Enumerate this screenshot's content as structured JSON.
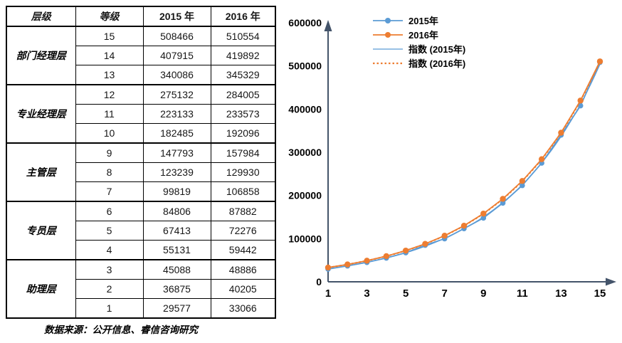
{
  "table": {
    "headers": [
      "层级",
      "等级",
      "2015 年",
      "2016 年"
    ],
    "groups": [
      {
        "level": "部门经理层",
        "rows": [
          [
            "15",
            "508466",
            "510554"
          ],
          [
            "14",
            "407915",
            "419892"
          ],
          [
            "13",
            "340086",
            "345329"
          ]
        ]
      },
      {
        "level": "专业经理层",
        "rows": [
          [
            "12",
            "275132",
            "284005"
          ],
          [
            "11",
            "223133",
            "233573"
          ],
          [
            "10",
            "182485",
            "192096"
          ]
        ]
      },
      {
        "level": "主管层",
        "rows": [
          [
            "9",
            "147793",
            "157984"
          ],
          [
            "8",
            "123239",
            "129930"
          ],
          [
            "7",
            "99819",
            "106858"
          ]
        ]
      },
      {
        "level": "专员层",
        "rows": [
          [
            "6",
            "84806",
            "87882"
          ],
          [
            "5",
            "67413",
            "72276"
          ],
          [
            "4",
            "55131",
            "59442"
          ]
        ]
      },
      {
        "level": "助理层",
        "rows": [
          [
            "3",
            "45088",
            "48886"
          ],
          [
            "2",
            "36875",
            "40205"
          ],
          [
            "1",
            "29577",
            "33066"
          ]
        ]
      }
    ]
  },
  "footnote": "数据来源：公开信息、睿信咨询研究",
  "chart_data": {
    "type": "line",
    "x": [
      1,
      2,
      3,
      4,
      5,
      6,
      7,
      8,
      9,
      10,
      11,
      12,
      13,
      14,
      15
    ],
    "series": [
      {
        "name": "2015年",
        "color": "#5B9BD5",
        "marker": true,
        "style": "solid",
        "values": [
          29577,
          36875,
          45088,
          55131,
          67413,
          84806,
          99819,
          123239,
          147793,
          182485,
          223133,
          275132,
          340086,
          407915,
          508466
        ]
      },
      {
        "name": "2016年",
        "color": "#ED7D31",
        "marker": true,
        "style": "solid",
        "values": [
          33066,
          40205,
          48886,
          59442,
          72276,
          87882,
          106858,
          129930,
          157984,
          192096,
          233573,
          284005,
          345329,
          419892,
          510554
        ]
      },
      {
        "name": "指数 (2015年)",
        "color": "#5B9BD5",
        "marker": false,
        "style": "solid",
        "trend_of": 0
      },
      {
        "name": "指数 (2016年)",
        "color": "#ED7D31",
        "marker": false,
        "style": "dotted",
        "trend_of": 1
      }
    ],
    "title": "",
    "xlabel": "",
    "ylabel": "",
    "ylim": [
      0,
      600000
    ],
    "ytick_step": 100000,
    "ytick_labels": [
      "0",
      "100000",
      "200000",
      "300000",
      "400000",
      "500000",
      "600000"
    ],
    "xtick_labels": [
      "1",
      "3",
      "5",
      "7",
      "9",
      "11",
      "13",
      "15"
    ],
    "legend_position": "top-left",
    "grid": false,
    "axis_color": "#44546A",
    "tick_label_color": "#000000"
  }
}
